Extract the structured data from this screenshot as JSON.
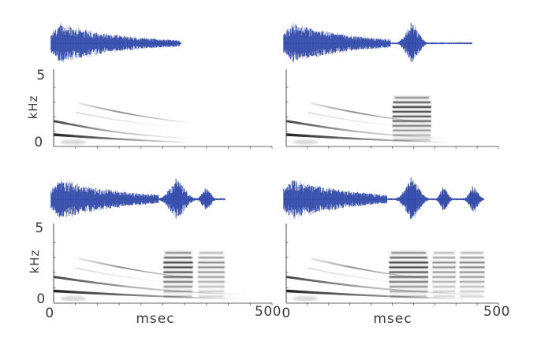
{
  "figure": {
    "background": "#ffffff",
    "waveform_color": "#2e47a8",
    "spectrogram_color": "#141414",
    "axis_color": "#4a4a4a",
    "label_color": "#3b3b3b",
    "y_axis": {
      "top_label": "5",
      "unit_label": "kHz",
      "bottom_label": "0",
      "range_khz": [
        0,
        5
      ],
      "tick_khz": [
        1,
        2,
        3,
        4
      ]
    },
    "x_axis": {
      "left_label": "0",
      "unit_label": "msec",
      "right_label": "500",
      "range_msec": [
        0,
        500
      ],
      "tick_interval_msec": 50
    }
  },
  "chart_data": {
    "type": "line",
    "subplots": "2x2 grid; each panel shows a blue oscillogram (top) and a grayscale spectrogram (bottom) of the same call",
    "x_unit": "msec",
    "y_unit": "kHz",
    "xlim": [
      0,
      500
    ],
    "ylim": [
      0,
      5
    ],
    "harmonics": [
      {
        "t0": 0,
        "f0": 0.8,
        "th0": 3.4,
        "t1": 420,
        "f1": 0.28,
        "th1": 1.2,
        "sag": 0.05,
        "fade": [
          0.95,
          0.5,
          0.05
        ],
        "fade_mid": 0.5
      },
      {
        "t0": 0,
        "f0": 1.72,
        "th0": 3.0,
        "t1": 460,
        "f1": 0.55,
        "th1": 1.0,
        "sag": 0.2,
        "fade": [
          0.8,
          0.3,
          0.04
        ],
        "fade_mid": 0.45
      },
      {
        "t0": 58,
        "f0": 2.92,
        "th0": 2.4,
        "t1": 330,
        "f1": 1.6,
        "th1": 1.0,
        "sag": 0.12,
        "fade": [
          0.1,
          0.5,
          0.05
        ],
        "fade_mid": 0.38
      },
      {
        "t0": 50,
        "f0": 2.3,
        "th0": 1.5,
        "t1": 265,
        "f1": 1.35,
        "th1": 0.9,
        "sag": 0.08,
        "fade": [
          0.18,
          0.12,
          0.03
        ],
        "fade_mid": 0.5
      }
    ],
    "noise_blob": {
      "t_ms": 45,
      "f_khz": 0.3,
      "rt_ms": 30,
      "rf_khz": 0.16,
      "opacity": 0.28
    },
    "pulse_stack_freq_khz": {
      "bottom": 0.45,
      "top": 3.3,
      "bars": 10,
      "bar_opacity": [
        0.22,
        0.3,
        0.42,
        0.55,
        0.66,
        0.74,
        0.8,
        0.82,
        0.68,
        0.45
      ],
      "bar_inset": [
        0.04,
        0.02,
        0.01,
        0,
        0,
        0,
        0,
        0,
        0.02,
        0.06
      ]
    },
    "panels": [
      {
        "name": "top-left",
        "grid": [
          0,
          0
        ],
        "seed": 11,
        "show_y_labels": true,
        "show_x_labels": false,
        "harmonics_end_ms": 310,
        "waveform": {
          "attack_ms": 16,
          "tau_ms": 150,
          "call_end_ms": 288,
          "end_ms": 292,
          "bursts": []
        },
        "pulse_stacks": []
      },
      {
        "name": "top-right",
        "grid": [
          0,
          1
        ],
        "seed": 22,
        "show_y_labels": false,
        "show_x_labels": false,
        "harmonics_end_ms": 380,
        "waveform": {
          "attack_ms": 16,
          "tau_ms": 150,
          "call_end_ms": 246,
          "end_ms": 438,
          "bursts": [
            {
              "center_ms": 297,
              "half_width_ms": 22,
              "amp": 0.95
            }
          ]
        },
        "pulse_stacks": [
          {
            "t0_ms": 250,
            "t1_ms": 342,
            "intensity": 1.0
          }
        ]
      },
      {
        "name": "bottom-left",
        "grid": [
          1,
          0
        ],
        "seed": 33,
        "show_y_labels": true,
        "show_x_labels": true,
        "harmonics_end_ms": 440,
        "waveform": {
          "attack_ms": 16,
          "tau_ms": 150,
          "call_end_ms": 240,
          "end_ms": 392,
          "bursts": [
            {
              "center_ms": 283,
              "half_width_ms": 26,
              "amp": 0.95
            },
            {
              "center_ms": 350,
              "half_width_ms": 15,
              "amp": 0.5
            }
          ]
        },
        "pulse_stacks": [
          {
            "t0_ms": 251,
            "t1_ms": 319,
            "intensity": 1.0
          },
          {
            "t0_ms": 330,
            "t1_ms": 392,
            "intensity": 0.6
          }
        ]
      },
      {
        "name": "bottom-right",
        "grid": [
          1,
          1
        ],
        "seed": 44,
        "show_y_labels": false,
        "show_x_labels": true,
        "harmonics_end_ms": 480,
        "waveform": {
          "attack_ms": 16,
          "tau_ms": 150,
          "call_end_ms": 238,
          "end_ms": 466,
          "bursts": [
            {
              "center_ms": 297,
              "half_width_ms": 24,
              "amp": 1.0
            },
            {
              "center_ms": 372,
              "half_width_ms": 13,
              "amp": 0.55
            },
            {
              "center_ms": 442,
              "half_width_ms": 15,
              "amp": 0.6
            }
          ]
        },
        "pulse_stacks": [
          {
            "t0_ms": 242,
            "t1_ms": 335,
            "intensity": 1.0
          },
          {
            "t0_ms": 344,
            "t1_ms": 400,
            "intensity": 0.58
          },
          {
            "t0_ms": 408,
            "t1_ms": 468,
            "intensity": 0.62
          }
        ]
      }
    ]
  }
}
